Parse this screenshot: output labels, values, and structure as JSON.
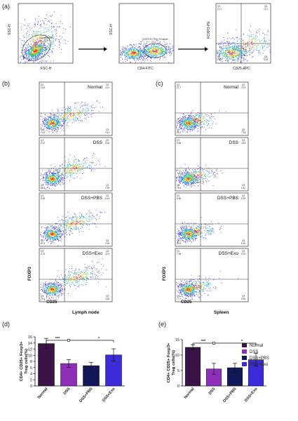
{
  "panel_labels": {
    "a": "(a)",
    "b": "(b)",
    "c": "(c)",
    "d": "(d)",
    "e": "(e)"
  },
  "gating": {
    "plot1": {
      "ylabel": "SSC-H",
      "xlabel": "FSC-H",
      "gate_label": "Lymphocytes",
      "gate_value": "77.5"
    },
    "plot2": {
      "ylabel": "SSC-H",
      "xlabel": "CD4-FITC",
      "gate_label": "CD4-FITC, SSC-H subset",
      "gate_value": "24.2"
    },
    "plot3": {
      "ylabel": "FOXP3-PE",
      "xlabel": "CD25-APC",
      "q1": "Q1",
      "q1v": "11.1",
      "q2": "Q2",
      "q2v": "11.2",
      "q3": "Q3",
      "q3v": "4.24",
      "q4": "Q4",
      "q4v": "73.5"
    }
  },
  "columns": [
    {
      "id": "lymph",
      "title": "Lymph node",
      "ylabel": "FOXP3",
      "xlabel": "CD25",
      "rows": [
        {
          "condition": "Normal",
          "q1": "10.8",
          "q2": "14.0",
          "q3": "0.41",
          "q4": "74.8"
        },
        {
          "condition": "DSS",
          "q1": "2.57",
          "q2": "6.15",
          "q3": "2.99",
          "q4": "88.3"
        },
        {
          "condition": "DSS+PBS",
          "q1": "5.59",
          "q2": "6.42",
          "q3": "0.36",
          "q4": "87.6"
        },
        {
          "condition": "DSS+Exo",
          "q1": "4.76",
          "q2": "11.9",
          "q3": "4.28",
          "q4": "79.1"
        }
      ]
    },
    {
      "id": "spleen",
      "title": "Spleen",
      "ylabel": "FOXP3",
      "xlabel": "CD25",
      "rows": [
        {
          "condition": "Normal",
          "q1": "22.7",
          "q2": "10.9",
          "q3": "7.24",
          "q4": "59.2"
        },
        {
          "condition": "DSS",
          "q1": "9.86",
          "q2": "4.43",
          "q3": "6.12",
          "q4": "79.6"
        },
        {
          "condition": "DSS+PBS",
          "q1": "5.38",
          "q2": "5.54",
          "q3": "6.30",
          "q4": "82.8"
        },
        {
          "condition": "DSS+Exo",
          "q1": "7.56",
          "q2": "8.75",
          "q3": "6.46",
          "q4": "77.2"
        }
      ]
    }
  ],
  "chart_data": [
    {
      "type": "bar",
      "categories": [
        "Normal",
        "DSS",
        "DSS+PBS",
        "DSS+Exo"
      ],
      "values": [
        13.8,
        7.3,
        6.6,
        10.1
      ],
      "errors": [
        1.7,
        1.3,
        1.1,
        2.0
      ],
      "ylabel": "CD4+ CD25+ Foxp3+ Treg cells(%)",
      "ylim": [
        0,
        16
      ],
      "yticks": [
        0,
        2,
        4,
        6,
        8,
        10,
        12,
        14,
        16
      ],
      "colors": [
        "#3a1446",
        "#8e2fb8",
        "#101858",
        "#3b2bd8"
      ],
      "significance": [
        {
          "label": "***"
        },
        {
          "label": "*"
        }
      ]
    },
    {
      "type": "bar",
      "categories": [
        "Normal",
        "DSS",
        "DSS+PBS",
        "DSS+Exo"
      ],
      "values": [
        12.5,
        5.5,
        5.9,
        8.5
      ],
      "errors": [
        0.8,
        1.8,
        1.4,
        2.1
      ],
      "ylabel": "CD4+ CD25+ Foxp3+ Treg cells(%)",
      "ylim": [
        0,
        15
      ],
      "yticks": [
        0,
        5,
        10,
        15
      ],
      "colors": [
        "#3a1446",
        "#8e2fb8",
        "#101858",
        "#3b2bd8"
      ],
      "significance": [
        {
          "label": "***"
        },
        {
          "label": "*"
        }
      ]
    }
  ],
  "legend": [
    {
      "label": "Normal",
      "color": "#3a1446"
    },
    {
      "label": "DSS",
      "color": "#8e2fb8"
    },
    {
      "label": "DSS+PBS",
      "color": "#101858"
    },
    {
      "label": "DSS+Exo",
      "color": "#3b2bd8"
    }
  ]
}
